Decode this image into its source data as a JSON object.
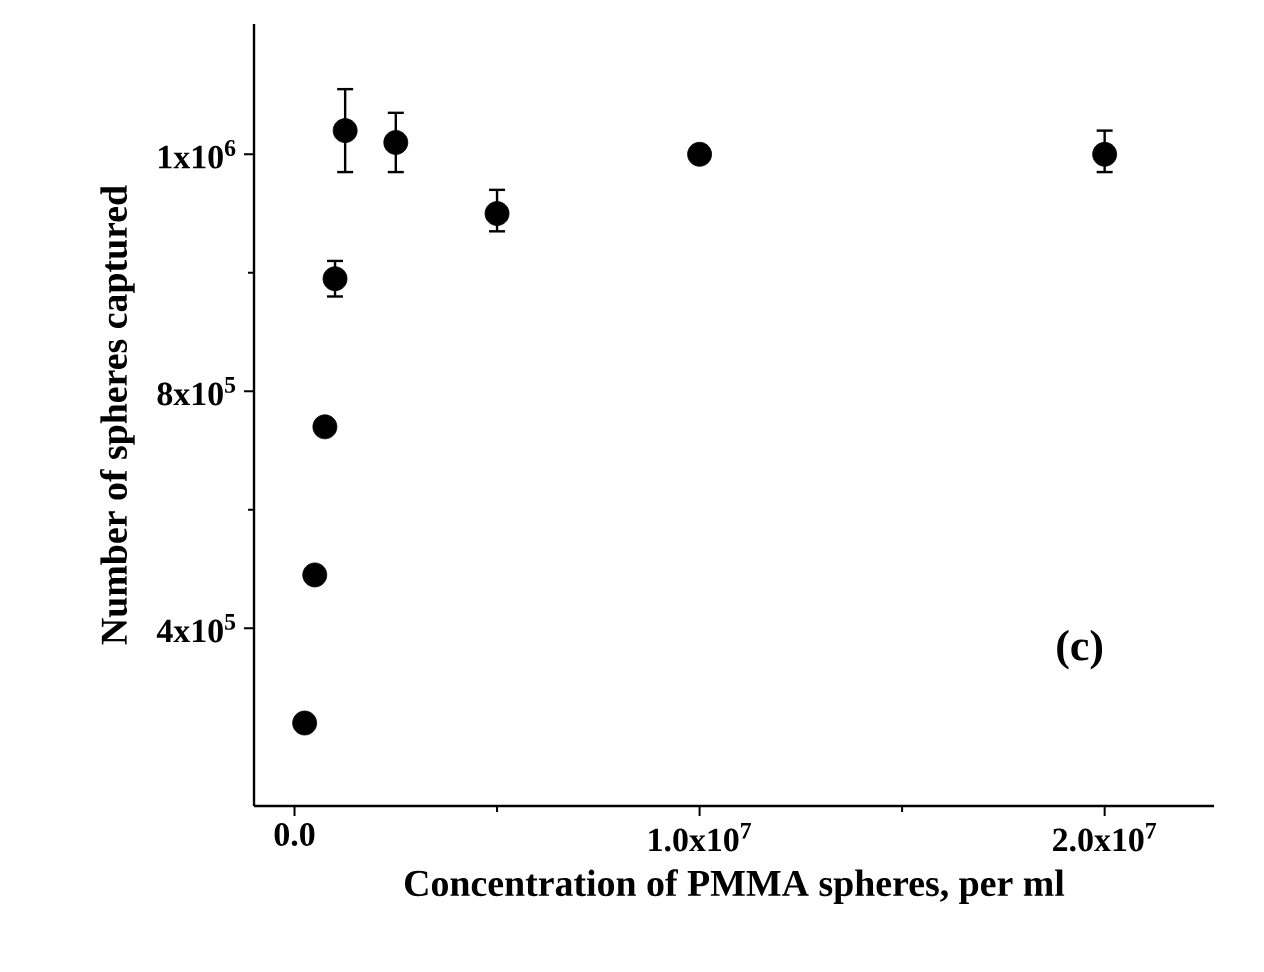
{
  "chart_data": {
    "type": "scatter",
    "xlabel": "Concentration of PMMA spheres, per ml",
    "ylabel": "Number of spheres captured",
    "x": [
      250000,
      500000,
      750000,
      1000000,
      1250000,
      2500000,
      5000000,
      10000000,
      20000000
    ],
    "values": [
      240000,
      490000,
      740000,
      990000,
      1240000,
      1220000,
      1100000,
      1200000,
      1200000
    ],
    "errors": [
      null,
      null,
      null,
      [
        960000,
        1020000
      ],
      [
        1170000,
        1310000
      ],
      [
        1170000,
        1270000
      ],
      [
        1070000,
        1140000
      ],
      null,
      [
        1170000,
        1240000
      ]
    ],
    "color": "#000000",
    "marker": "circle",
    "xlim": [
      -1000000,
      22700000
    ],
    "ylim": [
      100000,
      1420000
    ],
    "xticks": [
      {
        "value": 0,
        "label": "0.0"
      },
      {
        "value": 10000000,
        "label": "1.0x10$^{7}$"
      },
      {
        "value": 20000000,
        "label": "2.0x10$^{7}$"
      }
    ],
    "yticks": [
      {
        "value": 400000,
        "label": "4x10$^{5}$"
      },
      {
        "value": 800000,
        "label": "8x10$^{5}$"
      },
      {
        "value": 1200000,
        "label": "1x10$^{6}$"
      }
    ],
    "annotations": [
      "(c)"
    ]
  }
}
